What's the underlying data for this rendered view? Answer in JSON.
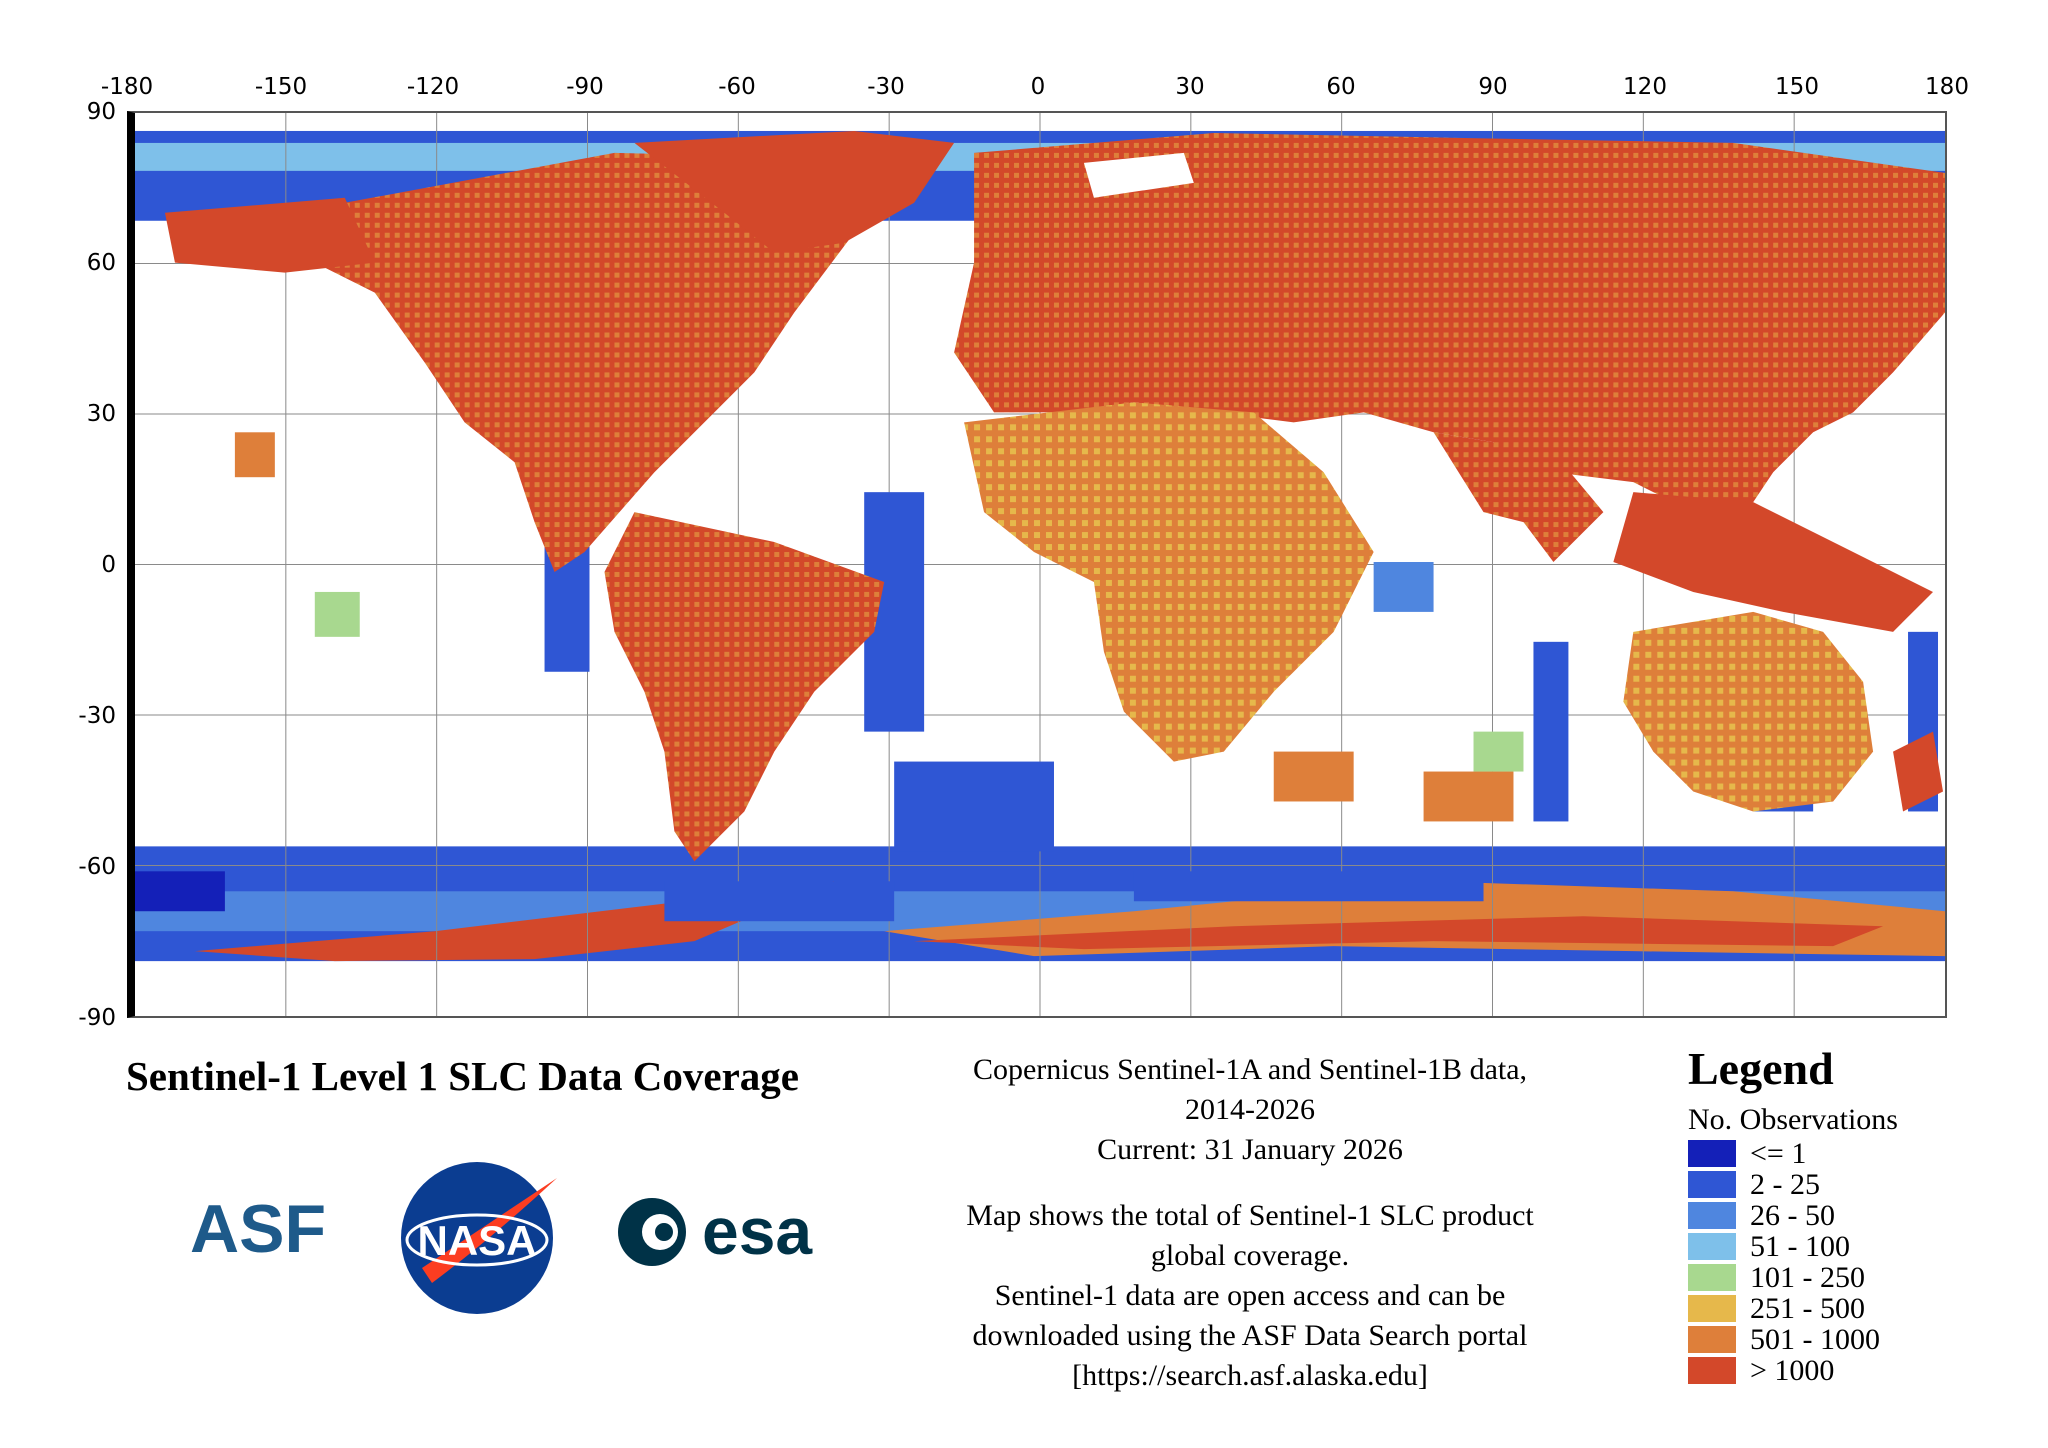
{
  "map": {
    "lon_ticks": [
      "-180",
      "-150",
      "-120",
      "-90",
      "-60",
      "-30",
      "0",
      "30",
      "60",
      "90",
      "120",
      "150",
      "180"
    ],
    "lat_ticks": [
      "90",
      "60",
      "30",
      "0",
      "-30",
      "-60",
      "-90"
    ],
    "colors": {
      "c0": "#1420b8",
      "c1": "#2f56d4",
      "c2": "#4f86df",
      "c3": "#7ec0ea",
      "c4": "#a8d88f",
      "c5": "#e6b84b",
      "c6": "#de7f3a",
      "c7": "#d3482a"
    }
  },
  "title": "Sentinel-1 Level 1 SLC Data Coverage",
  "description": {
    "line1": "Copernicus Sentinel-1A and Sentinel-1B data,",
    "line2": "2014-2026",
    "line3": "Current: 31 January 2026",
    "line4": "Map shows the total of Sentinel-1 SLC product",
    "line5": "global coverage.",
    "line6": "Sentinel-1 data are open access and can be",
    "line7": "downloaded using the ASF Data Search portal",
    "line8": "[https://search.asf.alaska.edu]"
  },
  "legend": {
    "title": "Legend",
    "subtitle": "No. Observations",
    "items": [
      {
        "label": "<= 1",
        "color": "#1420b8"
      },
      {
        "label": "2 - 25",
        "color": "#2f56d4"
      },
      {
        "label": "26 - 50",
        "color": "#4f86df"
      },
      {
        "label": "51 - 100",
        "color": "#7ec0ea"
      },
      {
        "label": "101 - 250",
        "color": "#a8d88f"
      },
      {
        "label": "251 - 500",
        "color": "#e6b84b"
      },
      {
        "label": "501 - 1000",
        "color": "#de7f3a"
      },
      {
        "label": "> 1000",
        "color": "#d3482a"
      }
    ]
  },
  "logos": {
    "asf": "ASF",
    "nasa": "NASA",
    "esa": "esa"
  }
}
